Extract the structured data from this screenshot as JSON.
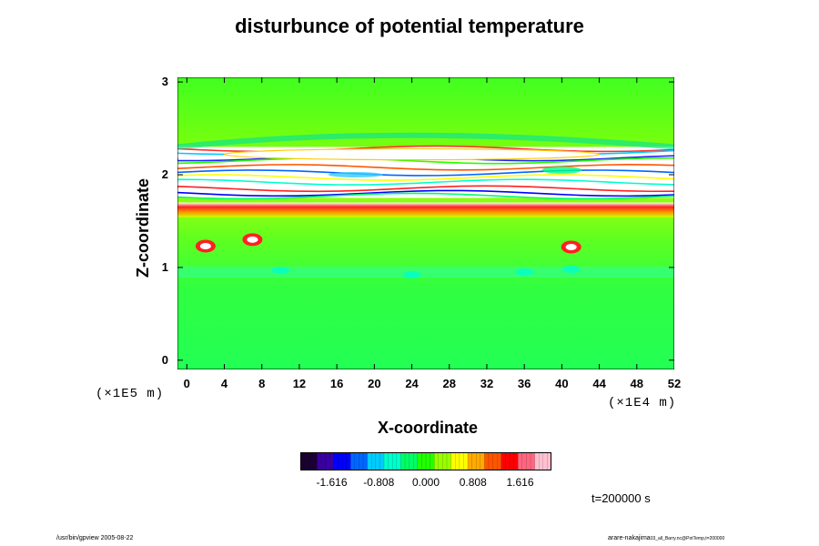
{
  "chart_data": {
    "type": "heatmap",
    "title": "disturbunce of potential temperature",
    "xlabel": "X-coordinate",
    "ylabel": "Z-coordinate",
    "x_units": "(×1E4 m)",
    "y_units": "(×1E5 m)",
    "xlim": [
      -1,
      52
    ],
    "ylim": [
      -0.1,
      3.05
    ],
    "x_ticks": [
      "0",
      "4",
      "8",
      "12",
      "16",
      "20",
      "24",
      "28",
      "32",
      "36",
      "40",
      "44",
      "48",
      "52"
    ],
    "y_ticks": [
      "0",
      "1",
      "2",
      "3"
    ],
    "colorbar": {
      "ticks": [
        "-1.616",
        "-0.808",
        "0.000",
        "0.808",
        "1.616"
      ],
      "colors": [
        "#1a0033",
        "#3a00a0",
        "#0000ff",
        "#0066ff",
        "#00ccff",
        "#00ffcc",
        "#00ff66",
        "#22ff00",
        "#99ff00",
        "#ffff00",
        "#ffaa00",
        "#ff5500",
        "#ff0000",
        "#ff6680",
        "#ffc0d0"
      ]
    },
    "background_value": 0.3,
    "features": [
      {
        "kind": "band",
        "z_center": 1.62,
        "value": 1.8,
        "description_z_range": [
          1.58,
          1.66
        ]
      },
      {
        "kind": "layered_structure",
        "z_range": [
          1.75,
          2.3
        ],
        "value": "mixed"
      },
      {
        "kind": "blob",
        "x": 2,
        "z": 1.23,
        "value": 2.0
      },
      {
        "kind": "blob",
        "x": 7,
        "z": 1.3,
        "value": 1.8
      },
      {
        "kind": "blob",
        "x": 41,
        "z": 1.22,
        "value": 1.8
      },
      {
        "kind": "weak_negative_layer",
        "z": 0.95,
        "value": -0.6
      }
    ],
    "time": "t=200000 s"
  },
  "footer": {
    "left": "/usr/bin/gpview 2005-08-22",
    "right": "arare-nakajima",
    "right_small": "03_all_Barry.nc@PotTemp,t=200000"
  }
}
